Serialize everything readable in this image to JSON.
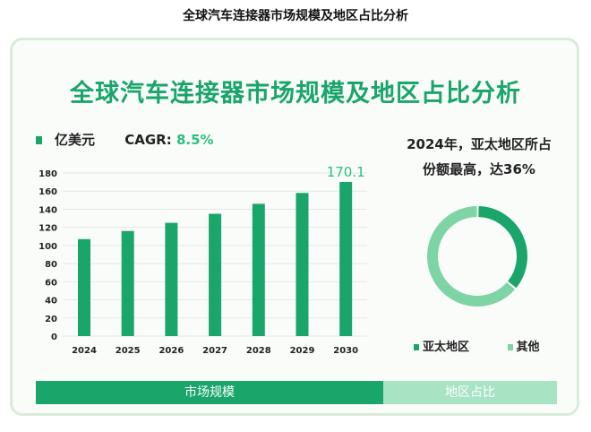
{
  "page_title": "全球汽车连接器市场规模及地区占比分析",
  "chart_data": [
    {
      "type": "bar",
      "title": "全球汽车连接器市场规模及地区占比分析",
      "unit_label": "亿美元",
      "cagr_label": "CAGR:",
      "cagr_value": "8.5%",
      "categories": [
        "2024",
        "2025",
        "2026",
        "2027",
        "2028",
        "2029",
        "2030"
      ],
      "values": [
        107,
        116,
        125,
        135,
        146,
        158,
        170.1
      ],
      "data_labels": {
        "2030": "170.1"
      },
      "ylim": [
        0,
        180
      ],
      "yticks": [
        "0",
        "20",
        "40",
        "60",
        "80",
        "100",
        "120",
        "140",
        "160",
        "180"
      ],
      "grid": true,
      "color": "#1aa56a"
    },
    {
      "type": "pie",
      "title_line1": "2024年，亚太地区所占",
      "title_line2": "份额最高，达36%",
      "slices": [
        {
          "name": "亚太地区",
          "value": 36,
          "color": "#1aa56a"
        },
        {
          "name": "其他",
          "value": 64,
          "color": "#7fd4a6"
        }
      ],
      "legend": "bottom"
    }
  ],
  "footer": {
    "left": "市场规模",
    "right": "地区占比",
    "left_color": "#1aa56a",
    "right_color": "#a8e3c4"
  }
}
